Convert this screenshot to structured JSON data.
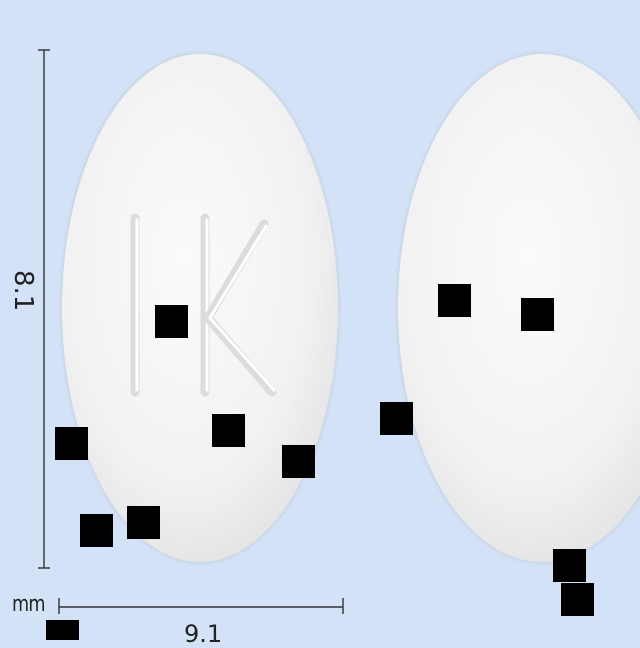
{
  "photo": {
    "background_color": "#d3e2f6",
    "tablet_color": "#f3f3f3",
    "imprint_text": "IK"
  },
  "scale": {
    "vertical_label": "8.1",
    "horizontal_label": "9.1",
    "unit_label": "mm"
  },
  "redaction_blocks_count": 13
}
